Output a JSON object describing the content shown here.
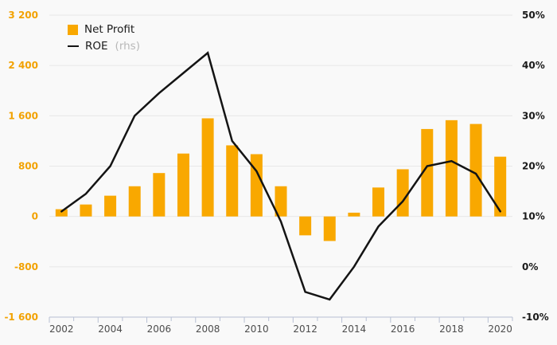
{
  "legend": {
    "net_profit_label": "Net Profit",
    "roe_label": "ROE",
    "roe_suffix": "(rhs)"
  },
  "colors": {
    "bar": "#F9A800",
    "line": "#141414",
    "left_axis_label": "#F2A202",
    "right_axis_label": "#1a1a1a",
    "x_axis_label": "#4d4d4d",
    "gridline": "#e8e8e8",
    "axis_line": "#b8c0d4",
    "background": "#f9f9f9",
    "legend_muted": "#b8b8b8"
  },
  "chart_data": {
    "type": "combo",
    "title": "",
    "categories": [
      2002,
      2003,
      2004,
      2005,
      2006,
      2007,
      2008,
      2009,
      2010,
      2011,
      2012,
      2013,
      2014,
      2015,
      2016,
      2017,
      2018,
      2019,
      2020
    ],
    "series": [
      {
        "name": "Net Profit",
        "type": "bar",
        "axis": "left",
        "values": [
          115,
          190,
          330,
          480,
          690,
          1000,
          1560,
          1130,
          990,
          480,
          -300,
          -390,
          60,
          460,
          750,
          1390,
          1530,
          1470,
          950
        ]
      },
      {
        "name": "ROE",
        "type": "line",
        "axis": "right",
        "unit": "%",
        "values": [
          11,
          14.5,
          20,
          30,
          34.5,
          38.5,
          42.5,
          25,
          19,
          9,
          -5,
          -6.5,
          0,
          8,
          13,
          20,
          21,
          18.5,
          11
        ]
      }
    ],
    "left_axis": {
      "range": [
        -1600,
        3200
      ],
      "tick_values": [
        3200,
        2400,
        1600,
        800,
        0,
        -800,
        -1600
      ],
      "tick_labels": [
        "3 200",
        "2 400",
        "1 600",
        "800",
        "0",
        "-800",
        "-1 600"
      ]
    },
    "right_axis": {
      "range": [
        -10,
        50
      ],
      "tick_values": [
        50,
        40,
        30,
        20,
        10,
        0,
        -10
      ],
      "tick_labels": [
        "50%",
        "40%",
        "30%",
        "20%",
        "10%",
        "0%",
        "-10%"
      ]
    },
    "x_axis": {
      "labeled_years": [
        "2002",
        "2004",
        "2006",
        "2008",
        "2010",
        "2012",
        "2014",
        "2016",
        "2018",
        "2020"
      ]
    },
    "grid": "horizontal",
    "legend_position": "top-left"
  }
}
